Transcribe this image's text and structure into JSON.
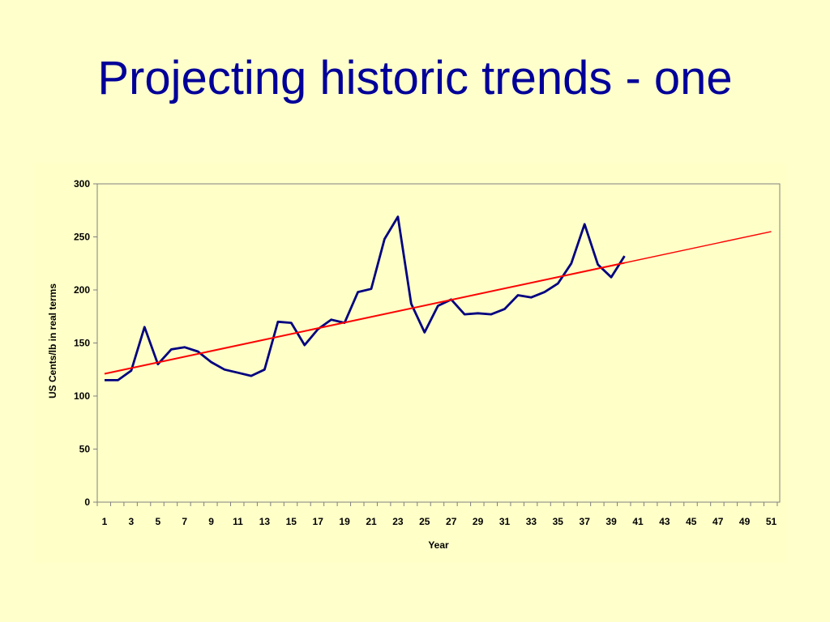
{
  "slide": {
    "title": "Projecting historic trends - one"
  },
  "colors": {
    "title": "#000099",
    "series": "#000080",
    "trend": "#ff0000",
    "background": "#ffffcc"
  },
  "chart_data": {
    "type": "line",
    "xlabel": "Year",
    "ylabel": "US Cents/lb in real terms",
    "xlim": [
      1,
      51
    ],
    "ylim": [
      0,
      300
    ],
    "yticks": [
      0,
      50,
      100,
      150,
      200,
      250,
      300
    ],
    "xtick_labels": [
      1,
      3,
      5,
      7,
      9,
      11,
      13,
      15,
      17,
      19,
      21,
      23,
      25,
      27,
      29,
      31,
      33,
      35,
      37,
      39,
      41,
      43,
      45,
      47,
      49,
      51
    ],
    "grid": false,
    "legend": "none",
    "series": [
      {
        "x": [
          1,
          2,
          3,
          4,
          5,
          6,
          7,
          8,
          9,
          10,
          11,
          12,
          13,
          14,
          15,
          16,
          17,
          18,
          19,
          20,
          21,
          22,
          23,
          24,
          25,
          26,
          27,
          28,
          29,
          30,
          31,
          32,
          33,
          34,
          35,
          36,
          37,
          38,
          39,
          40
        ],
        "values": [
          115,
          115,
          124,
          165,
          130,
          144,
          146,
          142,
          132,
          125,
          122,
          119,
          125,
          170,
          169,
          148,
          163,
          172,
          169,
          198,
          201,
          248,
          269,
          187,
          160,
          185,
          191,
          177,
          178,
          177,
          182,
          195,
          193,
          198,
          206,
          225,
          262,
          224,
          212,
          232
        ],
        "color": "#000080"
      },
      {
        "x": [
          1,
          51
        ],
        "values": [
          121,
          255
        ],
        "color": "#ff0000"
      }
    ]
  }
}
